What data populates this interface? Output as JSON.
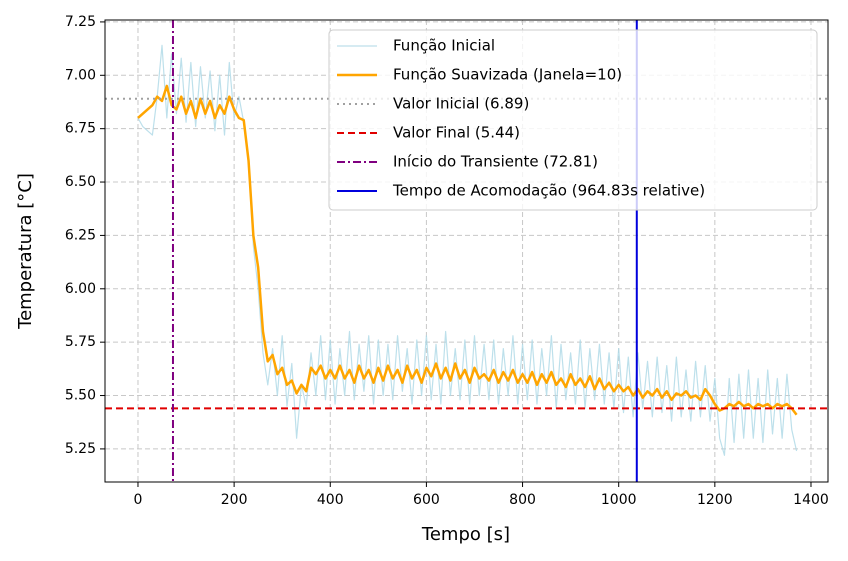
{
  "chart_data": {
    "type": "line",
    "xlabel": "Tempo [s]",
    "ylabel": "Temperatura [°C]",
    "xlim": [
      -68.6,
      1435.4
    ],
    "ylim": [
      5.095,
      7.259
    ],
    "xticks": [
      0,
      200,
      400,
      600,
      800,
      1000,
      1200,
      1400
    ],
    "yticks": [
      5.25,
      {
        "value": 5.5,
        "label": "5.50"
      },
      5.75,
      {
        "value": 6,
        "label": "6.00"
      },
      6.25,
      {
        "value": 6.5,
        "label": "6.50"
      },
      6.75,
      {
        "value": 7,
        "label": "7.00"
      },
      7.25
    ],
    "grid": true,
    "legend": "upper right",
    "x": [
      0,
      10,
      20,
      30,
      40,
      50,
      60,
      70,
      80,
      90,
      100,
      110,
      120,
      130,
      140,
      150,
      160,
      170,
      180,
      190,
      200,
      210,
      220,
      230,
      240,
      250,
      260,
      270,
      280,
      290,
      300,
      310,
      320,
      330,
      340,
      350,
      360,
      370,
      380,
      390,
      400,
      410,
      420,
      430,
      440,
      450,
      460,
      470,
      480,
      490,
      500,
      510,
      520,
      530,
      540,
      550,
      560,
      570,
      580,
      590,
      600,
      610,
      620,
      630,
      640,
      650,
      660,
      670,
      680,
      690,
      700,
      710,
      720,
      730,
      740,
      750,
      760,
      770,
      780,
      790,
      800,
      810,
      820,
      830,
      840,
      850,
      860,
      870,
      880,
      890,
      900,
      910,
      920,
      930,
      940,
      950,
      960,
      970,
      980,
      990,
      1000,
      1010,
      1020,
      1030,
      1040,
      1050,
      1060,
      1070,
      1080,
      1090,
      1100,
      1110,
      1120,
      1130,
      1140,
      1150,
      1160,
      1170,
      1180,
      1190,
      1200,
      1210,
      1220,
      1230,
      1240,
      1250,
      1260,
      1270,
      1280,
      1290,
      1300,
      1310,
      1320,
      1330,
      1340,
      1350,
      1360,
      1370
    ],
    "series": [
      {
        "name": "Função Inicial",
        "color": "#add8e6",
        "width": 1.2,
        "opacity": 0.8,
        "values": [
          6.8,
          6.76,
          6.74,
          6.72,
          6.9,
          7.14,
          6.8,
          7.1,
          6.82,
          7.08,
          6.78,
          7.06,
          6.76,
          7.04,
          6.8,
          7.02,
          6.74,
          7.0,
          6.72,
          7.06,
          6.8,
          6.9,
          6.78,
          6.6,
          6.2,
          6.0,
          5.7,
          5.55,
          5.72,
          5.5,
          5.78,
          5.45,
          5.65,
          5.3,
          5.55,
          5.45,
          5.7,
          5.5,
          5.78,
          5.48,
          5.76,
          5.46,
          5.72,
          5.5,
          5.8,
          5.48,
          5.74,
          5.52,
          5.78,
          5.46,
          5.76,
          5.5,
          5.74,
          5.48,
          5.78,
          5.52,
          5.72,
          5.46,
          5.76,
          5.5,
          5.78,
          5.48,
          5.74,
          5.46,
          5.8,
          5.5,
          5.72,
          5.48,
          5.76,
          5.46,
          5.78,
          5.5,
          5.74,
          5.48,
          5.76,
          5.46,
          5.72,
          5.5,
          5.78,
          5.46,
          5.74,
          5.48,
          5.76,
          5.46,
          5.72,
          5.5,
          5.78,
          5.44,
          5.74,
          5.48,
          5.7,
          5.46,
          5.76,
          5.44,
          5.72,
          5.48,
          5.74,
          5.46,
          5.7,
          5.44,
          5.72,
          5.42,
          5.68,
          5.4,
          5.7,
          5.44,
          5.66,
          5.4,
          5.68,
          5.42,
          5.64,
          5.38,
          5.68,
          5.4,
          5.62,
          5.38,
          5.66,
          5.4,
          5.64,
          5.38,
          5.58,
          5.3,
          5.22,
          5.58,
          5.28,
          5.6,
          5.3,
          5.62,
          5.3,
          5.58,
          5.28,
          5.62,
          5.32,
          5.58,
          5.3,
          5.6,
          5.34,
          5.24
        ]
      },
      {
        "name": "Função Suavizada (Janela=10)",
        "color": "#ffa500",
        "width": 2.5,
        "opacity": 1,
        "values": [
          6.8,
          6.82,
          6.84,
          6.86,
          6.9,
          6.88,
          6.95,
          6.86,
          6.84,
          6.9,
          6.82,
          6.88,
          6.8,
          6.89,
          6.82,
          6.88,
          6.8,
          6.86,
          6.82,
          6.9,
          6.84,
          6.8,
          6.79,
          6.6,
          6.25,
          6.1,
          5.8,
          5.66,
          5.69,
          5.6,
          5.63,
          5.55,
          5.57,
          5.51,
          5.55,
          5.52,
          5.63,
          5.6,
          5.64,
          5.58,
          5.62,
          5.58,
          5.64,
          5.58,
          5.62,
          5.56,
          5.64,
          5.58,
          5.62,
          5.56,
          5.63,
          5.57,
          5.64,
          5.58,
          5.62,
          5.56,
          5.64,
          5.58,
          5.62,
          5.56,
          5.63,
          5.59,
          5.65,
          5.58,
          5.63,
          5.57,
          5.65,
          5.58,
          5.62,
          5.56,
          5.63,
          5.58,
          5.6,
          5.57,
          5.62,
          5.56,
          5.61,
          5.57,
          5.62,
          5.56,
          5.6,
          5.56,
          5.61,
          5.55,
          5.6,
          5.56,
          5.61,
          5.55,
          5.58,
          5.54,
          5.6,
          5.55,
          5.58,
          5.54,
          5.59,
          5.53,
          5.58,
          5.53,
          5.56,
          5.52,
          5.55,
          5.52,
          5.54,
          5.5,
          5.53,
          5.49,
          5.52,
          5.5,
          5.53,
          5.49,
          5.52,
          5.48,
          5.51,
          5.5,
          5.52,
          5.49,
          5.5,
          5.48,
          5.53,
          5.5,
          5.46,
          5.43,
          5.44,
          5.46,
          5.45,
          5.47,
          5.45,
          5.46,
          5.44,
          5.46,
          5.45,
          5.46,
          5.44,
          5.46,
          5.45,
          5.46,
          5.44,
          5.41
        ]
      }
    ],
    "reference_lines": [
      {
        "name": "Valor Inicial (6.89)",
        "orientation": "horizontal",
        "value": 6.89,
        "color": "#a0a0a0",
        "style": "dotted"
      },
      {
        "name": "Valor Final (5.44)",
        "orientation": "horizontal",
        "value": 5.44,
        "color": "#e00000",
        "style": "dashed"
      },
      {
        "name": "Início do Transiente (72.81)",
        "orientation": "vertical",
        "value": 72.81,
        "color": "#800080",
        "style": "dashdot"
      },
      {
        "name": "Tempo de Acomodação (964.83s relative)",
        "orientation": "vertical",
        "value": 1037.64,
        "color": "#0000dd",
        "style": "solid"
      }
    ]
  }
}
